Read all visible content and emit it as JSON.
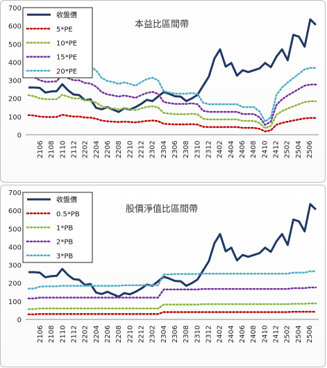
{
  "chart_data": [
    {
      "type": "line",
      "title": "本益比區間帶",
      "yticks": [
        0,
        100,
        200,
        300,
        400,
        500,
        600,
        700
      ],
      "ylim": [
        0,
        700
      ],
      "x_tick_labels": [
        "2106",
        "2108",
        "2110",
        "2112",
        "2202",
        "2204",
        "2206",
        "2208",
        "2210",
        "2212",
        "2302",
        "2304",
        "2306",
        "2308",
        "2310",
        "2312",
        "2402",
        "2404",
        "2406",
        "2408",
        "2410",
        "2412",
        "2502",
        "2504",
        "2506"
      ],
      "legend_position": "top-left",
      "series": [
        {
          "name": "收盤價",
          "color": "#1f3864",
          "width": 3,
          "dash": "",
          "values": [
            260,
            260,
            258,
            232,
            238,
            240,
            278,
            245,
            222,
            218,
            190,
            195,
            148,
            140,
            152,
            138,
            125,
            145,
            138,
            152,
            170,
            192,
            185,
            210,
            235,
            225,
            212,
            210,
            185,
            200,
            220,
            270,
            320,
            420,
            470,
            375,
            395,
            325,
            355,
            345,
            355,
            365,
            395,
            372,
            430,
            470,
            410,
            550,
            540,
            485,
            635,
            605
          ]
        },
        {
          "name": "5*PE",
          "color": "#c00000",
          "width": 2.5,
          "dash": "2,3",
          "values": [
            108,
            106,
            100,
            98,
            97,
            98,
            110,
            104,
            100,
            100,
            95,
            94,
            88,
            78,
            74,
            72,
            70,
            72,
            70,
            68,
            72,
            76,
            78,
            75,
            60,
            58,
            57,
            57,
            57,
            58,
            56,
            44,
            42,
            42,
            42,
            42,
            42,
            42,
            38,
            38,
            38,
            32,
            18,
            24,
            55,
            65,
            72,
            78,
            84,
            90,
            92,
            92
          ]
        },
        {
          "name": "10*PE",
          "color": "#8db43e",
          "width": 2.5,
          "dash": "2,3",
          "values": [
            218,
            212,
            200,
            196,
            195,
            196,
            220,
            210,
            200,
            200,
            190,
            188,
            177,
            157,
            148,
            145,
            140,
            144,
            140,
            135,
            145,
            153,
            157,
            150,
            120,
            116,
            113,
            113,
            113,
            115,
            112,
            88,
            84,
            84,
            84,
            84,
            84,
            84,
            76,
            76,
            76,
            64,
            36,
            48,
            110,
            130,
            144,
            156,
            168,
            180,
            184,
            184
          ]
        },
        {
          "name": "15*PE",
          "color": "#7030a0",
          "width": 2.5,
          "dash": "2,3",
          "values": [
            328,
            318,
            300,
            292,
            292,
            294,
            330,
            312,
            300,
            300,
            285,
            282,
            265,
            235,
            222,
            217,
            210,
            216,
            210,
            203,
            218,
            230,
            236,
            225,
            180,
            174,
            170,
            170,
            170,
            173,
            168,
            132,
            126,
            126,
            126,
            126,
            126,
            126,
            114,
            114,
            114,
            96,
            54,
            72,
            165,
            195,
            216,
            234,
            252,
            270,
            276,
            276
          ]
        },
        {
          "name": "20*PE",
          "color": "#4bacc6",
          "width": 2.5,
          "dash": "2,3",
          "values": [
            435,
            424,
            400,
            390,
            390,
            392,
            440,
            416,
            400,
            400,
            380,
            376,
            354,
            313,
            296,
            290,
            280,
            288,
            280,
            270,
            290,
            306,
            314,
            300,
            240,
            232,
            226,
            226,
            226,
            230,
            224,
            176,
            168,
            168,
            168,
            168,
            168,
            168,
            152,
            152,
            152,
            128,
            72,
            96,
            220,
            260,
            288,
            312,
            336,
            360,
            368,
            368
          ]
        }
      ]
    },
    {
      "type": "line",
      "title": "股價淨值比區間帶",
      "yticks": [
        0,
        100,
        200,
        300,
        400,
        500,
        600,
        700
      ],
      "ylim": [
        0,
        700
      ],
      "x_tick_labels": [
        "2106",
        "2108",
        "2110",
        "2112",
        "2202",
        "2204",
        "2206",
        "2208",
        "2210",
        "2212",
        "2302",
        "2304",
        "2306",
        "2308",
        "2310",
        "2312",
        "2402",
        "2404",
        "2406",
        "2408",
        "2410",
        "2412",
        "2502",
        "2504",
        "2506"
      ],
      "legend_position": "top-left",
      "series": [
        {
          "name": "收盤價",
          "color": "#1f3864",
          "width": 3,
          "dash": "",
          "values": [
            260,
            260,
            258,
            232,
            238,
            240,
            278,
            245,
            222,
            218,
            190,
            195,
            148,
            140,
            152,
            138,
            125,
            145,
            138,
            152,
            170,
            192,
            185,
            210,
            235,
            225,
            212,
            210,
            185,
            200,
            220,
            270,
            320,
            420,
            470,
            375,
            395,
            325,
            355,
            345,
            355,
            365,
            395,
            372,
            430,
            470,
            410,
            550,
            540,
            485,
            635,
            605
          ]
        },
        {
          "name": "0.5*PB",
          "color": "#c00000",
          "width": 2.5,
          "dash": "2,3",
          "values": [
            28,
            28,
            30,
            30,
            30,
            30,
            30,
            30,
            30,
            30,
            30,
            30,
            30,
            30,
            30,
            30,
            30,
            30,
            30,
            30,
            30,
            30,
            30,
            30,
            40,
            40,
            40,
            40,
            40,
            40,
            40,
            40,
            40,
            40,
            40,
            40,
            40,
            40,
            40,
            40,
            40,
            40,
            40,
            40,
            40,
            40,
            40,
            42,
            42,
            42,
            42,
            42
          ]
        },
        {
          "name": "1*PB",
          "color": "#8db43e",
          "width": 2.5,
          "dash": "2,3",
          "values": [
            57,
            57,
            60,
            60,
            60,
            60,
            60,
            60,
            60,
            60,
            60,
            60,
            60,
            60,
            60,
            60,
            60,
            60,
            60,
            60,
            60,
            60,
            60,
            60,
            82,
            82,
            82,
            82,
            82,
            82,
            82,
            84,
            84,
            84,
            84,
            84,
            84,
            84,
            84,
            84,
            84,
            84,
            84,
            84,
            84,
            84,
            84,
            86,
            86,
            86,
            88,
            88
          ]
        },
        {
          "name": "2*PB",
          "color": "#7030a0",
          "width": 2.5,
          "dash": "2,3",
          "values": [
            115,
            115,
            120,
            120,
            120,
            120,
            120,
            120,
            120,
            120,
            120,
            120,
            120,
            120,
            120,
            120,
            120,
            120,
            120,
            120,
            120,
            120,
            120,
            120,
            165,
            165,
            165,
            165,
            165,
            165,
            165,
            168,
            168,
            168,
            168,
            168,
            168,
            168,
            168,
            168,
            168,
            168,
            168,
            168,
            168,
            168,
            168,
            172,
            172,
            172,
            176,
            176
          ]
        },
        {
          "name": "3*PB",
          "color": "#4bacc6",
          "width": 2.5,
          "dash": "2,3",
          "values": [
            170,
            170,
            180,
            182,
            182,
            182,
            185,
            185,
            185,
            185,
            185,
            185,
            185,
            185,
            185,
            185,
            185,
            188,
            188,
            188,
            188,
            188,
            188,
            188,
            248,
            248,
            250,
            250,
            250,
            250,
            250,
            252,
            252,
            252,
            252,
            252,
            252,
            252,
            252,
            252,
            252,
            252,
            252,
            252,
            252,
            252,
            252,
            258,
            258,
            258,
            265,
            265
          ]
        }
      ]
    }
  ]
}
